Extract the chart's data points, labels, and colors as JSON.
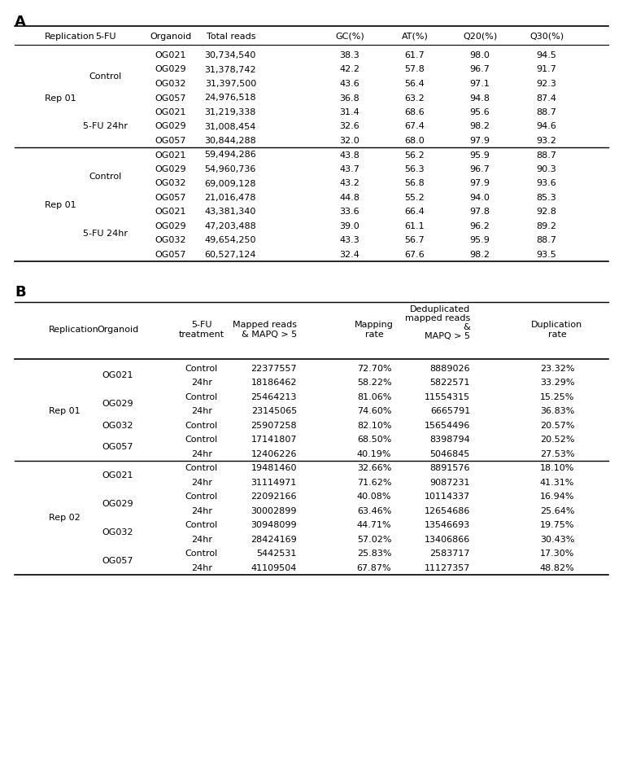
{
  "tableA_headers": [
    "Replication",
    "5-FU",
    "Organoid",
    "Total reads",
    "GC(%)",
    "AT(%)",
    "Q20(%)",
    "Q30(%)"
  ],
  "tableA_rows": [
    [
      "Rep 01",
      "Control",
      "OG021",
      "30,734,540",
      "38.3",
      "61.7",
      "98.0",
      "94.5"
    ],
    [
      "Rep 01",
      "Control",
      "OG029",
      "31,378,742",
      "42.2",
      "57.8",
      "96.7",
      "91.7"
    ],
    [
      "Rep 01",
      "Control",
      "OG032",
      "31,397,500",
      "43.6",
      "56.4",
      "97.1",
      "92.3"
    ],
    [
      "Rep 01",
      "Control",
      "OG057",
      "24,976,518",
      "36.8",
      "63.2",
      "94.8",
      "87.4"
    ],
    [
      "Rep 01",
      "5-FU 24hr",
      "OG021",
      "31,219,338",
      "31.4",
      "68.6",
      "95.6",
      "88.7"
    ],
    [
      "Rep 01",
      "5-FU 24hr",
      "OG029",
      "31,008,454",
      "32.6",
      "67.4",
      "98.2",
      "94.6"
    ],
    [
      "Rep 01",
      "5-FU 24hr",
      "OG057",
      "30,844,288",
      "32.0",
      "68.0",
      "97.9",
      "93.2"
    ],
    [
      "Rep 01",
      "Control",
      "OG021",
      "59,494,286",
      "43.8",
      "56.2",
      "95.9",
      "88.7"
    ],
    [
      "Rep 01",
      "Control",
      "OG029",
      "54,960,736",
      "43.7",
      "56.3",
      "96.7",
      "90.3"
    ],
    [
      "Rep 01",
      "Control",
      "OG032",
      "69,009,128",
      "43.2",
      "56.8",
      "97.9",
      "93.6"
    ],
    [
      "Rep 01",
      "Control",
      "OG057",
      "21,016,478",
      "44.8",
      "55.2",
      "94.0",
      "85.3"
    ],
    [
      "Rep 01",
      "5-FU 24hr",
      "OG021",
      "43,381,340",
      "33.6",
      "66.4",
      "97.8",
      "92.8"
    ],
    [
      "Rep 01",
      "5-FU 24hr",
      "OG029",
      "47,203,488",
      "39.0",
      "61.1",
      "96.2",
      "89.2"
    ],
    [
      "Rep 01",
      "5-FU 24hr",
      "OG032",
      "49,654,250",
      "43.3",
      "56.7",
      "95.9",
      "88.7"
    ],
    [
      "Rep 01",
      "5-FU 24hr",
      "OG057",
      "60,527,124",
      "32.4",
      "67.6",
      "98.2",
      "93.5"
    ]
  ],
  "tableB_rows": [
    [
      "Rep 01",
      "OG021",
      "Control",
      "22377557",
      "72.70%",
      "8889026",
      "23.32%"
    ],
    [
      "Rep 01",
      "OG021",
      "24hr",
      "18186462",
      "58.22%",
      "5822571",
      "33.29%"
    ],
    [
      "Rep 01",
      "OG029",
      "Control",
      "25464213",
      "81.06%",
      "11554315",
      "15.25%"
    ],
    [
      "Rep 01",
      "OG029",
      "24hr",
      "23145065",
      "74.60%",
      "6665791",
      "36.83%"
    ],
    [
      "Rep 01",
      "OG032",
      "Control",
      "25907258",
      "82.10%",
      "15654496",
      "20.57%"
    ],
    [
      "Rep 01",
      "OG057",
      "Control",
      "17141807",
      "68.50%",
      "8398794",
      "20.52%"
    ],
    [
      "Rep 01",
      "OG057",
      "24hr",
      "12406226",
      "40.19%",
      "5046845",
      "27.53%"
    ],
    [
      "Rep 02",
      "OG021",
      "Control",
      "19481460",
      "32.66%",
      "8891576",
      "18.10%"
    ],
    [
      "Rep 02",
      "OG021",
      "24hr",
      "31114971",
      "71.62%",
      "9087231",
      "41.31%"
    ],
    [
      "Rep 02",
      "OG029",
      "Control",
      "22092166",
      "40.08%",
      "10114337",
      "16.94%"
    ],
    [
      "Rep 02",
      "OG029",
      "24hr",
      "30002899",
      "63.46%",
      "12654686",
      "25.64%"
    ],
    [
      "Rep 02",
      "OG032",
      "Control",
      "30948099",
      "44.71%",
      "13546693",
      "19.75%"
    ],
    [
      "Rep 02",
      "OG032",
      "24hr",
      "28424169",
      "57.02%",
      "13406866",
      "30.43%"
    ],
    [
      "Rep 02",
      "OG057",
      "Control",
      "5442531",
      "25.83%",
      "2583717",
      "17.30%"
    ],
    [
      "Rep 02",
      "OG057",
      "24hr",
      "41109504",
      "67.87%",
      "11127357",
      "48.82%"
    ]
  ],
  "background_color": "#ffffff",
  "font_size": 8.0
}
